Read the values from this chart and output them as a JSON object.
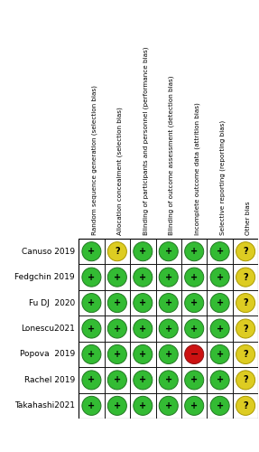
{
  "studies": [
    "Canuso 2019",
    "Fedgchin 2019",
    "Fu DJ  2020",
    "Lonescu2021",
    "Popova  2019",
    "Rachel 2019",
    "Takahashi2021"
  ],
  "columns": [
    "Random sequence generation (selection bias)",
    "Allocation concealment (selection bias)",
    "Blinding of participants and personnel (performance bias)",
    "Blinding of outcome assessment (detection bias)",
    "Incomplete outcome data (attrition bias)",
    "Selective reporting (reporting bias)",
    "Other bias"
  ],
  "grid": [
    [
      "G",
      "Y",
      "G",
      "G",
      "G",
      "G",
      "Y"
    ],
    [
      "G",
      "G",
      "G",
      "G",
      "G",
      "G",
      "Y"
    ],
    [
      "G",
      "G",
      "G",
      "G",
      "G",
      "G",
      "Y"
    ],
    [
      "G",
      "G",
      "G",
      "G",
      "G",
      "G",
      "Y"
    ],
    [
      "G",
      "G",
      "G",
      "G",
      "R",
      "G",
      "Y"
    ],
    [
      "G",
      "G",
      "G",
      "G",
      "G",
      "G",
      "Y"
    ],
    [
      "G",
      "G",
      "G",
      "G",
      "G",
      "G",
      "Y"
    ]
  ],
  "color_map": {
    "G": "#33bb33",
    "Y": "#ddcc22",
    "R": "#cc1111"
  },
  "edge_color_map": {
    "G": "#227722",
    "Y": "#aa9900",
    "R": "#881111"
  },
  "symbol_map": {
    "G": "+",
    "Y": "?",
    "R": "−"
  },
  "background_color": "#ffffff"
}
